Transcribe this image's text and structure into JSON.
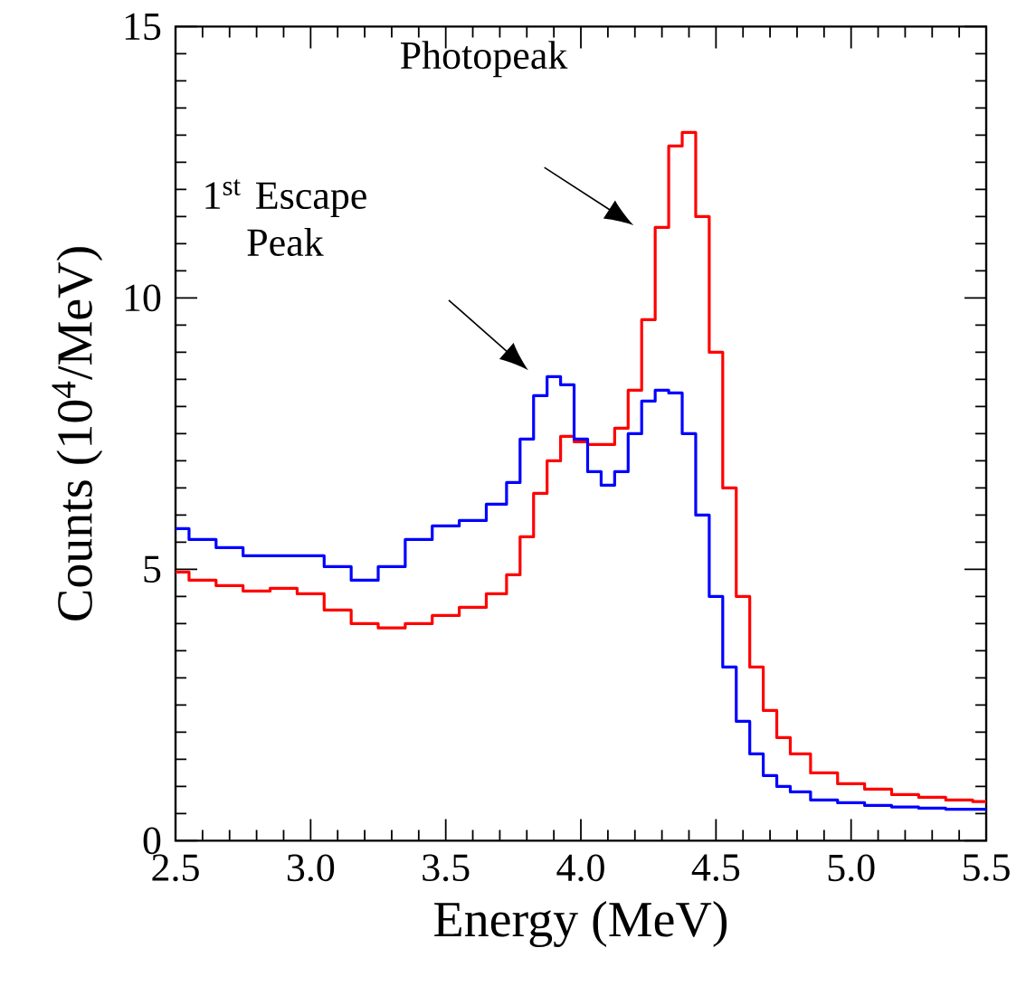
{
  "chart_data": {
    "type": "step",
    "xlabel": "Energy (MeV)",
    "ylabel": "Counts (10$^{4}$/MeV)",
    "x": [
      2.5,
      2.6,
      2.7,
      2.8,
      2.9,
      3.0,
      3.1,
      3.2,
      3.3,
      3.4,
      3.5,
      3.6,
      3.7,
      3.75,
      3.8,
      3.85,
      3.9,
      3.95,
      4.0,
      4.05,
      4.1,
      4.15,
      4.2,
      4.25,
      4.3,
      4.35,
      4.4,
      4.45,
      4.5,
      4.55,
      4.6,
      4.65,
      4.7,
      4.75,
      4.8,
      4.9,
      5.0,
      5.1,
      5.2,
      5.3,
      5.4,
      5.5
    ],
    "series": [
      {
        "color": "#ff0000",
        "values": [
          4.95,
          4.8,
          4.7,
          4.6,
          4.65,
          4.55,
          4.25,
          4.0,
          3.92,
          4.0,
          4.15,
          4.3,
          4.55,
          4.9,
          5.6,
          6.4,
          7.0,
          7.45,
          7.35,
          7.3,
          7.3,
          7.6,
          8.3,
          9.6,
          11.3,
          12.8,
          13.05,
          11.5,
          9.0,
          6.5,
          4.5,
          3.2,
          2.4,
          1.9,
          1.6,
          1.25,
          1.05,
          0.95,
          0.85,
          0.8,
          0.75,
          0.72
        ]
      },
      {
        "color": "#0000ff",
        "values": [
          5.75,
          5.55,
          5.4,
          5.25,
          5.25,
          5.25,
          5.05,
          4.8,
          5.05,
          5.55,
          5.8,
          5.9,
          6.2,
          6.6,
          7.4,
          8.2,
          8.55,
          8.4,
          7.4,
          6.8,
          6.55,
          6.8,
          7.5,
          8.1,
          8.3,
          8.25,
          7.5,
          6.0,
          4.5,
          3.2,
          2.2,
          1.6,
          1.2,
          1.0,
          0.9,
          0.75,
          0.7,
          0.65,
          0.62,
          0.6,
          0.58,
          0.58
        ]
      }
    ],
    "xlim": [
      2.5,
      5.5
    ],
    "ylim": [
      0,
      15
    ],
    "xticks": [
      2.5,
      {
        "value": 3,
        "label": "3.0"
      },
      3.5,
      {
        "value": 4,
        "label": "4.0"
      },
      4.5,
      {
        "value": 5,
        "label": "5.0"
      },
      5.5
    ],
    "yticks": [
      0,
      5,
      10,
      15
    ],
    "annotations": [
      "Photopeak",
      "1$^{st}$ Escape Peak"
    ]
  }
}
